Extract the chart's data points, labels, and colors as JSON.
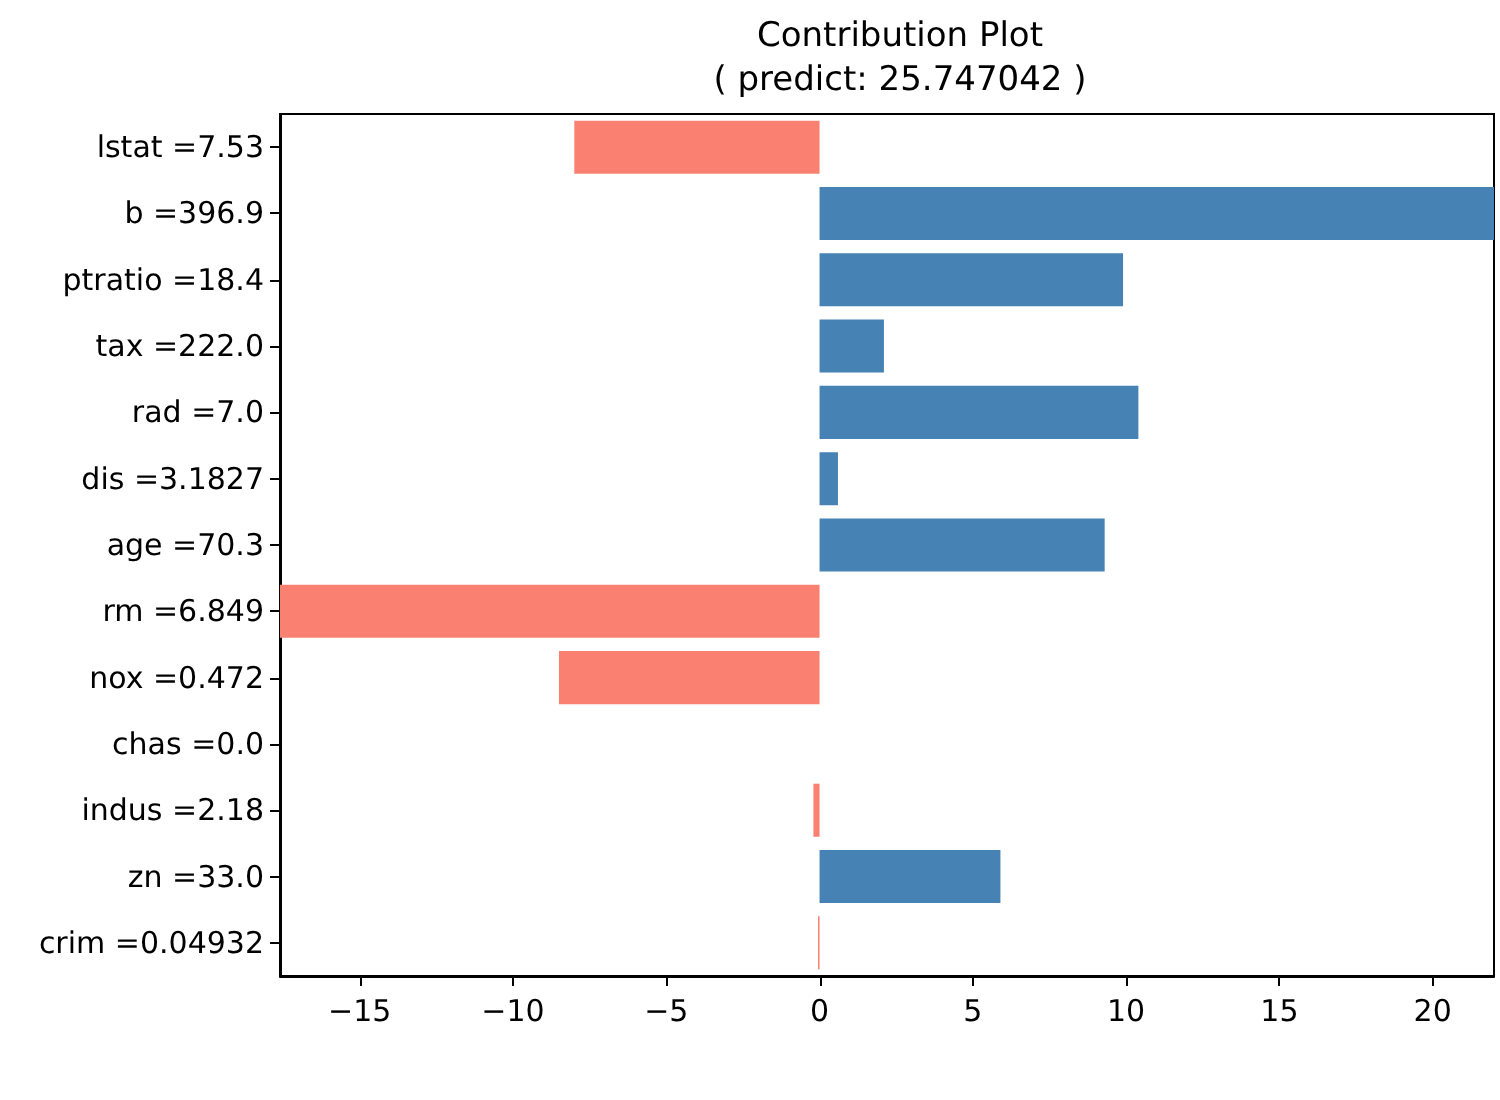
{
  "chart_data": {
    "type": "bar",
    "orientation": "horizontal",
    "title": "Contribution Plot\n( predict: 25.747042 )",
    "categories": [
      "lstat =7.53",
      "b =396.9",
      "ptratio =18.4",
      "tax =222.0",
      "rad =7.0",
      "dis =3.1827",
      "age =70.3",
      "rm =6.849",
      "nox =0.472",
      "chas =0.0",
      "indus =2.18",
      "zn =33.0",
      "crim =0.04932"
    ],
    "values": [
      -8.0,
      22.0,
      9.9,
      2.1,
      10.4,
      0.6,
      9.3,
      -17.6,
      -8.5,
      0,
      -0.2,
      5.9,
      -0.05
    ],
    "colors": [
      "#fa8072",
      "#4682b4",
      "#4682b4",
      "#4682b4",
      "#4682b4",
      "#4682b4",
      "#4682b4",
      "#fa8072",
      "#fa8072",
      "#4682b4",
      "#fa8072",
      "#4682b4",
      "#fa8072"
    ],
    "xlim": [
      -17.6,
      22.0
    ],
    "xticks": [
      -15,
      -10,
      -5,
      0,
      5,
      10,
      15,
      20
    ]
  }
}
